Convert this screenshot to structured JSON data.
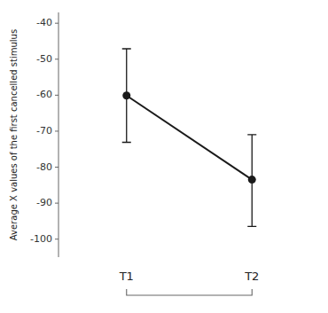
{
  "chart_data": {
    "type": "line",
    "categories": [
      "T1",
      "T2"
    ],
    "series": [
      {
        "values": [
          -60.1,
          -83.46
        ],
        "error_upper": [
          13.0,
          12.5
        ],
        "error_lower": [
          13.0,
          13.0
        ],
        "color": "#1a1a1a",
        "marker": "circle",
        "line_style": "solid"
      }
    ],
    "ylabel": "Average X values of the first cancelled stimulus",
    "ylim": [
      -105,
      -37
    ],
    "yticks": [
      -40,
      -50,
      -60,
      -70,
      -80,
      -90,
      -100
    ],
    "grid": false
  }
}
